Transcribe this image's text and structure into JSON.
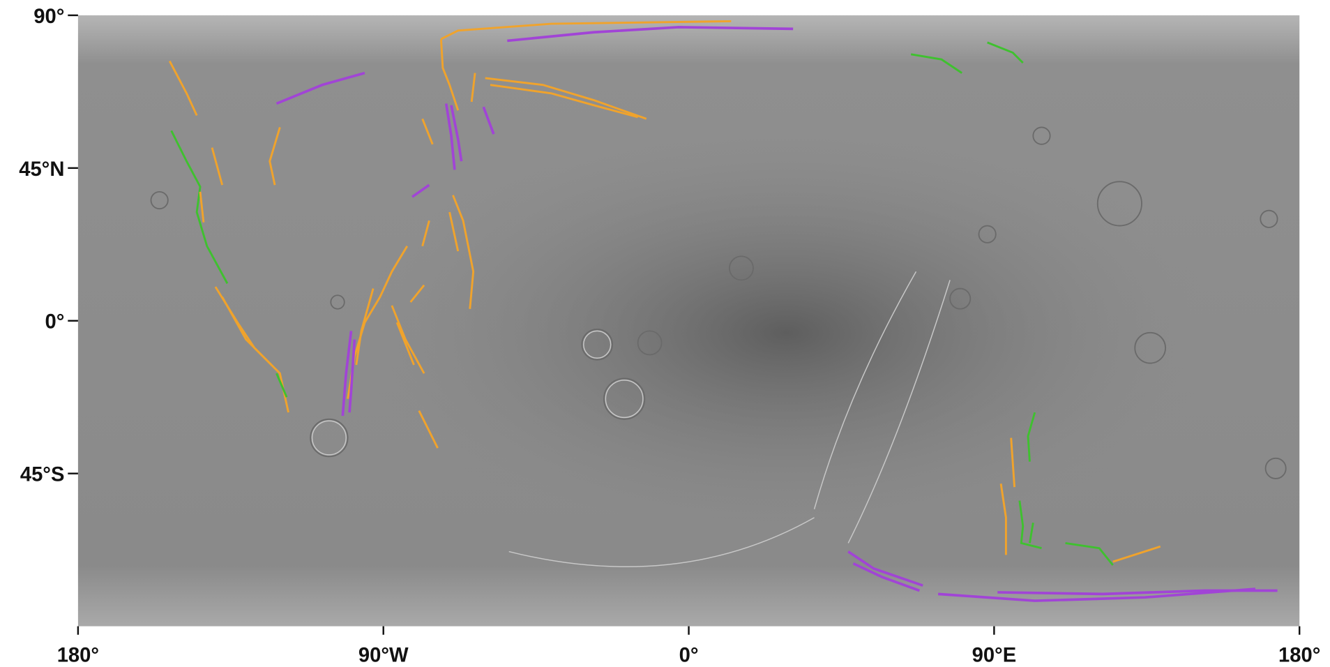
{
  "map": {
    "y_axis_labels": [
      "90°",
      "45°N",
      "0°",
      "45°S"
    ],
    "x_axis_labels": [
      "180°",
      "90°W",
      "0°",
      "90°E",
      "180°"
    ]
  }
}
